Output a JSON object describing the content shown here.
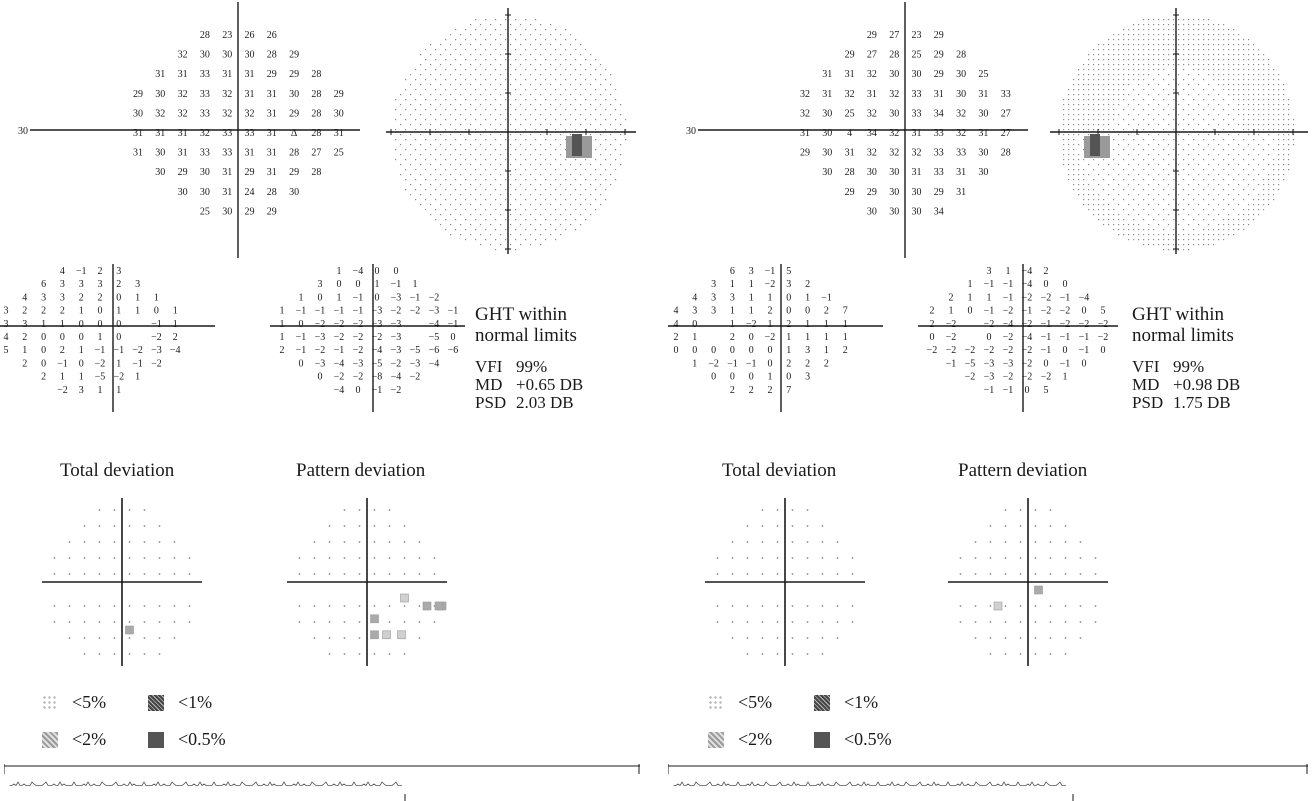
{
  "panels": [
    {
      "id": "left",
      "sensitivity": {
        "axis_label": "30",
        "rows": [
          [
            "",
            "",
            "",
            "28",
            "23",
            "26",
            "26",
            "",
            "",
            ""
          ],
          [
            "",
            "",
            "32",
            "30",
            "30",
            "30",
            "28",
            "29",
            "",
            ""
          ],
          [
            "",
            "31",
            "31",
            "33",
            "31",
            "31",
            "29",
            "29",
            "28",
            ""
          ],
          [
            "29",
            "30",
            "32",
            "33",
            "32",
            "31",
            "31",
            "30",
            "28",
            "29"
          ],
          [
            "30",
            "32",
            "32",
            "33",
            "32",
            "32",
            "31",
            "29",
            "28",
            "30"
          ],
          [
            "31",
            "31",
            "31",
            "32",
            "33",
            "33",
            "31",
            "Δ",
            "28",
            "31"
          ],
          [
            "31",
            "30",
            "31",
            "33",
            "33",
            "31",
            "31",
            "28",
            "27",
            "25"
          ],
          [
            "",
            "30",
            "29",
            "30",
            "31",
            "29",
            "31",
            "29",
            "28",
            ""
          ],
          [
            "",
            "",
            "30",
            "30",
            "31",
            "24",
            "28",
            "30",
            "",
            ""
          ],
          [
            "",
            "",
            "",
            "25",
            "30",
            "29",
            "29",
            "",
            "",
            ""
          ]
        ]
      },
      "greyscale": {
        "blind_spot_side": "right"
      },
      "total_deviation": {
        "rows": [
          [
            "",
            "",
            "",
            "4",
            "−1",
            "2",
            "3",
            "",
            "",
            ""
          ],
          [
            "",
            "",
            "6",
            "3",
            "3",
            "3",
            "2",
            "3",
            "",
            ""
          ],
          [
            "",
            "4",
            "3",
            "3",
            "2",
            "2",
            "0",
            "1",
            "1",
            ""
          ],
          [
            "3",
            "2",
            "2",
            "2",
            "1",
            "0",
            "1",
            "1",
            "0",
            "1"
          ],
          [
            "3",
            "3",
            "1",
            "1",
            "0",
            "0",
            "0",
            "",
            "−1",
            "1"
          ],
          [
            "4",
            "2",
            "0",
            "0",
            "0",
            "1",
            "0",
            "",
            "−2",
            "2"
          ],
          [
            "5",
            "1",
            "0",
            "2",
            "1",
            "−1",
            "−1",
            "−2",
            "−3",
            "−4"
          ],
          [
            "",
            "2",
            "0",
            "−1",
            "0",
            "−2",
            "1",
            "−1",
            "−2",
            ""
          ],
          [
            "",
            "",
            "2",
            "1",
            "1",
            "−5",
            "−2",
            "1",
            "",
            ""
          ],
          [
            "",
            "",
            "",
            "−2",
            "3",
            "1",
            "1",
            "",
            "",
            ""
          ]
        ]
      },
      "pattern_deviation": {
        "rows": [
          [
            "",
            "",
            "",
            "1",
            "−4",
            "0",
            "0",
            "",
            "",
            ""
          ],
          [
            "",
            "",
            "3",
            "0",
            "0",
            "1",
            "−1",
            "1",
            "",
            ""
          ],
          [
            "",
            "1",
            "0",
            "1",
            "−1",
            "0",
            "−3",
            "−1",
            "−2",
            ""
          ],
          [
            "1",
            "−1",
            "−1",
            "−1",
            "−1",
            "−3",
            "−2",
            "−2",
            "−3",
            "−1"
          ],
          [
            "1",
            "0",
            "−2",
            "−2",
            "−2",
            "−3",
            "−3",
            "",
            "−4",
            "−1"
          ],
          [
            "1",
            "−1",
            "−3",
            "−2",
            "−2",
            "−2",
            "−3",
            "",
            "−5",
            "0"
          ],
          [
            "2",
            "−1",
            "−2",
            "−1",
            "−2",
            "−4",
            "−3",
            "−5",
            "−6",
            "−6"
          ],
          [
            "",
            "0",
            "−3",
            "−4",
            "−3",
            "−5",
            "−2",
            "−3",
            "−4",
            ""
          ],
          [
            "",
            "",
            "0",
            "−2",
            "−2",
            "−8",
            "−4",
            "−2",
            "",
            ""
          ],
          [
            "",
            "",
            "",
            "−4",
            "0",
            "−1",
            "−2",
            "",
            "",
            ""
          ]
        ]
      },
      "ght": "GHT within normal limits",
      "stats": [
        {
          "key": "VFI",
          "value": "99%"
        },
        {
          "key": "MD",
          "value": "+0.65 DB"
        },
        {
          "key": "PSD",
          "value": "2.03 DB"
        }
      ],
      "caption_total": "Total deviation",
      "caption_pattern": "Pattern deviation",
      "legend": {
        "p5": "<5%",
        "p1": "<1%",
        "p2": "<2%",
        "p05": "<0.5%"
      }
    },
    {
      "id": "right",
      "sensitivity": {
        "axis_label": "30",
        "rows": [
          [
            "",
            "",
            "",
            "29",
            "27",
            "23",
            "29",
            "",
            "",
            ""
          ],
          [
            "",
            "",
            "29",
            "27",
            "28",
            "25",
            "29",
            "28",
            "",
            ""
          ],
          [
            "",
            "31",
            "31",
            "32",
            "30",
            "30",
            "29",
            "30",
            "25",
            ""
          ],
          [
            "32",
            "31",
            "32",
            "31",
            "32",
            "33",
            "31",
            "30",
            "31",
            "33"
          ],
          [
            "32",
            "30",
            "25",
            "32",
            "30",
            "33",
            "34",
            "32",
            "30",
            "27"
          ],
          [
            "31",
            "30",
            "4",
            "34",
            "32",
            "31",
            "33",
            "32",
            "31",
            "27"
          ],
          [
            "29",
            "30",
            "31",
            "32",
            "32",
            "32",
            "33",
            "33",
            "30",
            "28"
          ],
          [
            "",
            "30",
            "28",
            "30",
            "30",
            "31",
            "33",
            "31",
            "30",
            ""
          ],
          [
            "",
            "",
            "29",
            "29",
            "30",
            "30",
            "29",
            "31",
            "",
            ""
          ],
          [
            "",
            "",
            "",
            "30",
            "30",
            "30",
            "34",
            "",
            "",
            ""
          ]
        ]
      },
      "greyscale": {
        "blind_spot_side": "left"
      },
      "total_deviation": {
        "rows": [
          [
            "",
            "",
            "",
            "6",
            "3",
            "−1",
            "5",
            "",
            "",
            ""
          ],
          [
            "",
            "",
            "3",
            "1",
            "1",
            "−2",
            "3",
            "2",
            "",
            ""
          ],
          [
            "",
            "4",
            "3",
            "3",
            "1",
            "1",
            "0",
            "1",
            "−1",
            ""
          ],
          [
            "4",
            "3",
            "3",
            "1",
            "1",
            "2",
            "0",
            "0",
            "2",
            "7"
          ],
          [
            "4",
            "0",
            "",
            "1",
            "−2",
            "1",
            "2",
            "1",
            "1",
            "1"
          ],
          [
            "2",
            "1",
            "",
            "2",
            "0",
            "−2",
            "1",
            "1",
            "1",
            "1"
          ],
          [
            "0",
            "0",
            "0",
            "0",
            "0",
            "0",
            "1",
            "3",
            "1",
            "2"
          ],
          [
            "",
            "1",
            "−2",
            "−1",
            "−1",
            "0",
            "2",
            "2",
            "2",
            ""
          ],
          [
            "",
            "",
            "0",
            "0",
            "0",
            "1",
            "0",
            "3",
            "",
            ""
          ],
          [
            "",
            "",
            "",
            "2",
            "2",
            "2",
            "7",
            "",
            "",
            ""
          ]
        ]
      },
      "pattern_deviation": {
        "rows": [
          [
            "",
            "",
            "",
            "3",
            "1",
            "−4",
            "2",
            "",
            "",
            ""
          ],
          [
            "",
            "",
            "1",
            "−1",
            "−1",
            "−4",
            "0",
            "0",
            "",
            ""
          ],
          [
            "",
            "2",
            "1",
            "1",
            "−1",
            "−2",
            "−2",
            "−1",
            "−4",
            ""
          ],
          [
            "2",
            "1",
            "0",
            "−1",
            "−2",
            "−1",
            "−2",
            "−2",
            "0",
            "5"
          ],
          [
            "2",
            "−2",
            "",
            "−2",
            "−4",
            "−2",
            "−1",
            "−2",
            "−2",
            "−2"
          ],
          [
            "0",
            "−2",
            "",
            "0",
            "−2",
            "−4",
            "−1",
            "−1",
            "−1",
            "−2"
          ],
          [
            "−2",
            "−2",
            "−2",
            "−2",
            "−2",
            "−2",
            "−1",
            "0",
            "−1",
            "0"
          ],
          [
            "",
            "−1",
            "−5",
            "−3",
            "−3",
            "−2",
            "0",
            "−1",
            "0",
            ""
          ],
          [
            "",
            "",
            "−2",
            "−3",
            "−2",
            "−2",
            "−2",
            "1",
            "",
            ""
          ],
          [
            "",
            "",
            "",
            "−1",
            "−1",
            "0",
            "5",
            "",
            "",
            ""
          ]
        ]
      },
      "ght": "GHT within normal limits",
      "stats": [
        {
          "key": "VFI",
          "value": "99%"
        },
        {
          "key": "MD",
          "value": "+0.98 DB"
        },
        {
          "key": "PSD",
          "value": "1.75 DB"
        }
      ],
      "caption_total": "Total deviation",
      "caption_pattern": "Pattern deviation",
      "legend": {
        "p5": "<5%",
        "p1": "<1%",
        "p2": "<2%",
        "p05": "<0.5%"
      }
    }
  ],
  "colors": {
    "ink": "#1a1a1a",
    "grey_dot": "#8a8a8a",
    "dark_patch": "#555555"
  },
  "icons": [
    "probability-5-icon",
    "probability-1-icon",
    "probability-2-icon",
    "probability-05-icon"
  ]
}
